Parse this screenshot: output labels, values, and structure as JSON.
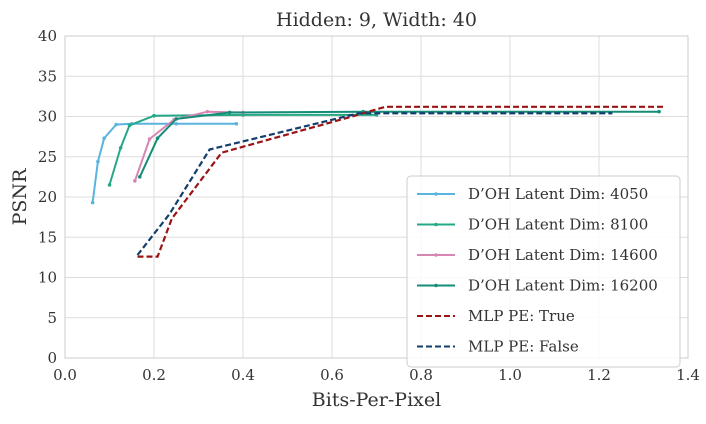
{
  "chart_data": {
    "type": "line",
    "title": "Hidden: 9, Width: 40",
    "xlabel": "Bits-Per-Pixel",
    "ylabel": "PSNR",
    "xlim": [
      0.0,
      1.4
    ],
    "ylim": [
      0,
      40
    ],
    "xticks": [
      "0.0",
      "0.2",
      "0.4",
      "0.6",
      "0.8",
      "1.0",
      "1.2",
      "1.4"
    ],
    "yticks": [
      "0",
      "5",
      "10",
      "15",
      "20",
      "25",
      "30",
      "35",
      "40"
    ],
    "grid": true,
    "legend_position": "lower-right",
    "series": [
      {
        "name": "D’OH Latent Dim: 4050",
        "color": "#5ab4e0",
        "style": "solid",
        "x": [
          0.062,
          0.074,
          0.088,
          0.115,
          0.15,
          0.25,
          0.385
        ],
        "y": [
          19.3,
          24.4,
          27.3,
          29.0,
          29.1,
          29.1,
          29.1
        ]
      },
      {
        "name": "D’OH Latent Dim: 8100",
        "color": "#22a884",
        "style": "solid",
        "x": [
          0.1,
          0.125,
          0.145,
          0.2,
          0.4,
          0.7
        ],
        "y": [
          21.5,
          26.1,
          28.9,
          30.1,
          30.2,
          30.2
        ]
      },
      {
        "name": "D’OH Latent Dim: 14600",
        "color": "#d685b4",
        "style": "solid",
        "x": [
          0.157,
          0.19,
          0.245,
          0.32,
          0.4
        ],
        "y": [
          22.0,
          27.2,
          29.6,
          30.6,
          30.5
        ]
      },
      {
        "name": "D’OH Latent Dim: 16200",
        "color": "#148c78",
        "style": "solid",
        "x": [
          0.168,
          0.208,
          0.25,
          0.37,
          0.67,
          1.335
        ],
        "y": [
          22.5,
          27.3,
          29.7,
          30.5,
          30.6,
          30.6
        ]
      },
      {
        "name": "MLP PE: True",
        "color": "#9b1414",
        "style": "dashed",
        "x": [
          0.163,
          0.208,
          0.24,
          0.352,
          0.645,
          0.72,
          1.35
        ],
        "y": [
          12.6,
          12.6,
          17.3,
          25.5,
          30.0,
          31.2,
          31.2
        ]
      },
      {
        "name": "MLP PE: False",
        "color": "#123e6e",
        "style": "dashed",
        "x": [
          0.163,
          0.235,
          0.325,
          0.66,
          1.23
        ],
        "y": [
          12.8,
          17.9,
          25.9,
          30.4,
          30.4
        ]
      }
    ]
  }
}
